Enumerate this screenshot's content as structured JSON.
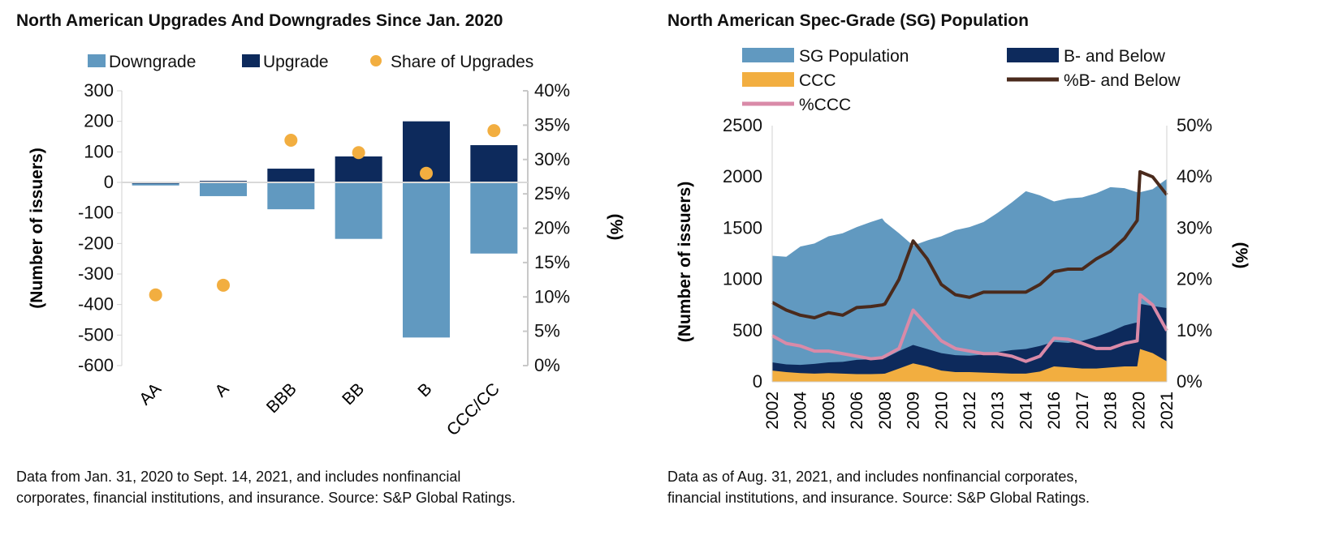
{
  "chart_data": [
    {
      "type": "bar",
      "title": "North American Upgrades And Downgrades Since Jan. 2020",
      "categories": [
        "AA",
        "A",
        "BBB",
        "BB",
        "B",
        "CCC/CC"
      ],
      "series": [
        {
          "name": "Downgrade",
          "axis": "left",
          "color": "#6199c0",
          "values": [
            -10,
            -45,
            -88,
            -185,
            -508,
            -233
          ]
        },
        {
          "name": "Upgrade",
          "axis": "left",
          "color": "#0d2a5c",
          "values": [
            0,
            5,
            45,
            85,
            200,
            122
          ]
        },
        {
          "name": "Share of Upgrades",
          "axis": "right",
          "type": "scatter",
          "color": "#f2ae40",
          "values": [
            10.3,
            11.7,
            32.8,
            31.0,
            28.0,
            34.2
          ]
        }
      ],
      "ylabel": "(Number of issuers)",
      "y2label": "(%)",
      "ylim": [
        -600,
        300
      ],
      "yticks": [
        "300",
        "200",
        "100",
        "0",
        "-100",
        "-200",
        "-300",
        "-400",
        "-500",
        "-600"
      ],
      "y2lim": [
        0,
        40
      ],
      "y2ticks": [
        "40%",
        "35%",
        "30%",
        "25%",
        "20%",
        "15%",
        "10%",
        "5%",
        "0%"
      ],
      "legend": "top",
      "note": [
        "Data from Jan. 31, 2020 to Sept. 14, 2021, and includes nonfinancial",
        "corporates, financial institutions, and insurance. Source: S&P Global Ratings."
      ]
    },
    {
      "type": "area",
      "title": "North American Spec-Grade (SG) Population",
      "xticks": [
        "2002",
        "2004",
        "2005",
        "2006",
        "2008",
        "2009",
        "2010",
        "2012",
        "2013",
        "2014",
        "2016",
        "2017",
        "2018",
        "2020",
        "2021"
      ],
      "x": [
        2002,
        2003,
        2004,
        2004.5,
        2005,
        2005.5,
        2006,
        2007,
        2007.8,
        2008,
        2008.5,
        2009,
        2009.5,
        2010,
        2011,
        2012,
        2012.5,
        2013,
        2013.5,
        2014,
        2015,
        2016,
        2016.5,
        2017,
        2017.5,
        2018,
        2019,
        2019.9,
        2020.05,
        2020.5,
        2021
      ],
      "series": [
        {
          "name": "SG Population",
          "axis": "left",
          "type": "area",
          "color": "#6199c0",
          "values": [
            1230,
            1220,
            1320,
            1350,
            1420,
            1450,
            1510,
            1560,
            1595,
            1560,
            1450,
            1330,
            1380,
            1420,
            1480,
            1510,
            1560,
            1650,
            1750,
            1860,
            1820,
            1760,
            1790,
            1800,
            1840,
            1900,
            1890,
            1850,
            1850,
            1880,
            1980
          ]
        },
        {
          "name": "B- and Below",
          "axis": "left",
          "type": "area",
          "color": "#0d2a5c",
          "values": [
            190,
            170,
            165,
            175,
            190,
            195,
            215,
            220,
            225,
            230,
            300,
            360,
            320,
            280,
            260,
            255,
            265,
            290,
            310,
            320,
            350,
            390,
            380,
            400,
            440,
            490,
            550,
            580,
            760,
            740,
            720
          ]
        },
        {
          "name": "CCC",
          "axis": "left",
          "type": "area",
          "color": "#f2ae40",
          "values": [
            110,
            95,
            85,
            80,
            85,
            80,
            75,
            75,
            78,
            80,
            130,
            180,
            150,
            110,
            95,
            95,
            90,
            85,
            80,
            80,
            100,
            150,
            140,
            130,
            130,
            140,
            150,
            150,
            320,
            280,
            200
          ]
        },
        {
          "name": "%B- and Below",
          "axis": "right",
          "type": "line",
          "color": "#4a2a1c",
          "values": [
            15.5,
            14,
            13,
            12.5,
            13.5,
            13,
            14.5,
            14.7,
            15,
            15.2,
            20,
            27.5,
            24,
            19,
            17,
            16.5,
            17.5,
            17.5,
            17.5,
            17.5,
            19,
            21.5,
            22,
            22,
            24,
            25.5,
            28,
            31.5,
            41,
            40,
            36.5
          ]
        },
        {
          "name": "%CCC",
          "axis": "right",
          "type": "line",
          "color": "#d98aa8",
          "values": [
            9,
            7.5,
            7,
            6,
            6,
            5.5,
            5,
            4.5,
            4.7,
            5,
            6.5,
            14,
            11,
            8,
            6.5,
            6,
            5.5,
            5.5,
            5,
            4,
            5,
            8.5,
            8.3,
            7.5,
            6.5,
            6.5,
            7.5,
            8,
            17,
            15,
            10
          ]
        }
      ],
      "ylabel": "(Number of issuers)",
      "y2label": "(%)",
      "ylim": [
        0,
        2500
      ],
      "yticks": [
        "2500",
        "2000",
        "1500",
        "1000",
        "500",
        "0"
      ],
      "y2lim": [
        0,
        50
      ],
      "y2ticks": [
        "50%",
        "40%",
        "30%",
        "20%",
        "10%",
        "0%"
      ],
      "legend": "top",
      "note": [
        "Data as of Aug. 31, 2021, and includes nonfinancial corporates,",
        "financial institutions, and insurance. Source: S&P Global Ratings."
      ]
    }
  ]
}
